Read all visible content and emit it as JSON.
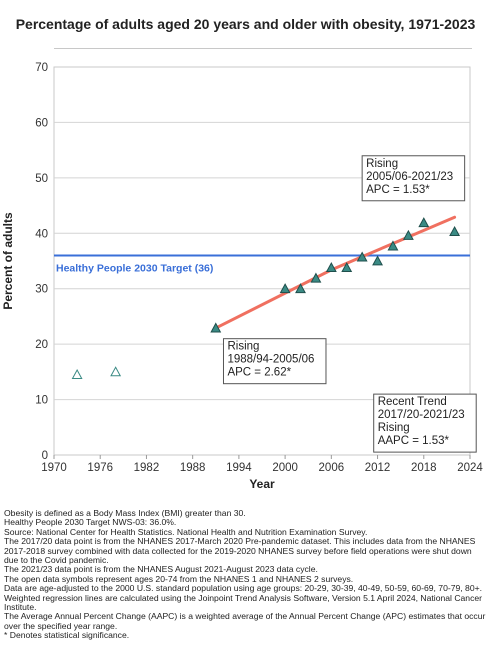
{
  "title": "Percentage of adults aged 20 years and older with obesity, 1971-2023",
  "chart_data": {
    "type": "scatter",
    "xlabel": "Year",
    "ylabel": "Percent of adults",
    "xlim": [
      1970,
      2024
    ],
    "ylim": [
      0,
      70
    ],
    "xticks": [
      1970,
      1976,
      1982,
      1988,
      1994,
      2000,
      2006,
      2012,
      2018,
      2024
    ],
    "yticks": [
      0,
      10,
      20,
      30,
      40,
      50,
      60,
      70
    ],
    "grid": "horizontal",
    "colors": {
      "points": "#3a8a84",
      "trend": "#f07060",
      "target": "#3a6fd8"
    },
    "open_points": [
      {
        "x": 1973,
        "y": 14.5
      },
      {
        "x": 1978,
        "y": 15.0
      }
    ],
    "filled_points": [
      {
        "x": 1991,
        "y": 22.9
      },
      {
        "x": 2000,
        "y": 30.0
      },
      {
        "x": 2002,
        "y": 30.0
      },
      {
        "x": 2004,
        "y": 31.9
      },
      {
        "x": 2006,
        "y": 33.8
      },
      {
        "x": 2008,
        "y": 33.8
      },
      {
        "x": 2010,
        "y": 35.7
      },
      {
        "x": 2012,
        "y": 35.0
      },
      {
        "x": 2014,
        "y": 37.7
      },
      {
        "x": 2016,
        "y": 39.6
      },
      {
        "x": 2018,
        "y": 41.9
      },
      {
        "x": 2022,
        "y": 40.3
      }
    ],
    "trend_lines": [
      {
        "x": [
          1991,
          2006
        ],
        "y": [
          22.9,
          33.4
        ]
      },
      {
        "x": [
          2006,
          2022
        ],
        "y": [
          33.4,
          42.9
        ]
      }
    ],
    "target": {
      "y": 36,
      "label": "Healthy People 2030 Target (36)"
    },
    "annotations": [
      {
        "lines": [
          "Rising",
          "1988/94-2005/06",
          "APC =  2.62*"
        ],
        "x": 1992,
        "y": 19.0
      },
      {
        "lines": [
          "Rising",
          "2005/06-2021/23",
          "APC =  1.53*"
        ],
        "x": 2010,
        "y": 52.0
      },
      {
        "lines": [
          "Recent Trend",
          "2017/20-2021/23",
          "Rising",
          "AAPC =  1.53*"
        ],
        "x": 2011.5,
        "y": 9.0
      }
    ]
  },
  "notes": [
    "Obesity is defined as a Body Mass Index (BMI) greater than 30.",
    "Healthy People 2030 Target NWS-03: 36.0%.",
    "Source: National Center for Health Statistics. National Health and Nutrition Examination Survey.",
    "The 2017/20 data point is from the NHANES 2017-March 2020 Pre-pandemic dataset. This includes data from the NHANES 2017-2018 survey combined with data collected for the 2019-2020 NHANES survey before field operations were shut down due to the Covid pandemic.",
    "The 2021/23 data point is from the NHANES August 2021-August 2023 data cycle.",
    "The open data symbols represent ages 20-74 from the NHANES 1 and NHANES 2 surveys.",
    "Data are age-adjusted to the 2000 U.S. standard population using age groups: 20-29, 30-39, 40-49, 50-59, 60-69, 70-79, 80+.",
    "Weighted regression lines are calculated using the Joinpoint Trend Analysis Software, Version 5.1 April 2024, National Cancer Institute.",
    "The Average Annual Percent Change (AAPC) is a weighted average of the Annual Percent Change (APC) estimates that occur over the specified year range.",
    "* Denotes statistical significance."
  ]
}
